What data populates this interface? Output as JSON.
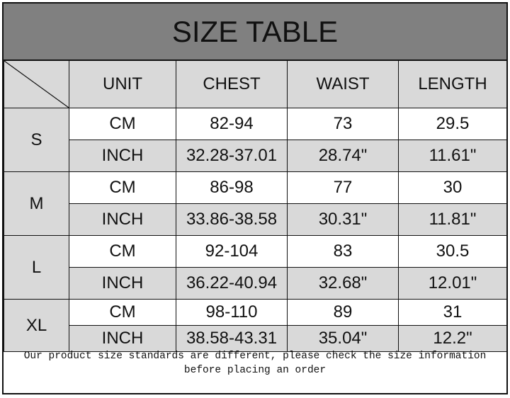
{
  "title": "SIZE TABLE",
  "headers": [
    "UNIT",
    "CHEST",
    "WAIST",
    "LENGTH"
  ],
  "sizes": [
    {
      "size": "S",
      "rows": [
        [
          "CM",
          "82-94",
          "73",
          "29.5"
        ],
        [
          "INCH",
          "32.28-37.01",
          "28.74\"",
          "11.61\""
        ]
      ]
    },
    {
      "size": "M",
      "rows": [
        [
          "CM",
          "86-98",
          "77",
          "30"
        ],
        [
          "INCH",
          "33.86-38.58",
          "30.31\"",
          "11.81\""
        ]
      ]
    },
    {
      "size": "L",
      "rows": [
        [
          "CM",
          "92-104",
          "83",
          "30.5"
        ],
        [
          "INCH",
          "36.22-40.94",
          "32.68\"",
          "12.01\""
        ]
      ]
    },
    {
      "size": "XL",
      "rows": [
        [
          "CM",
          "98-110",
          "89",
          "31"
        ],
        [
          "INCH",
          "38.58-43.31",
          "35.04\"",
          "12.2\""
        ]
      ]
    }
  ],
  "footer": "Our product size standards are different, please check the size information before placing an order",
  "colors": {
    "title_band": "#808080",
    "header_cell": "#d9d9d9",
    "inch_row": "#d9d9d9"
  }
}
